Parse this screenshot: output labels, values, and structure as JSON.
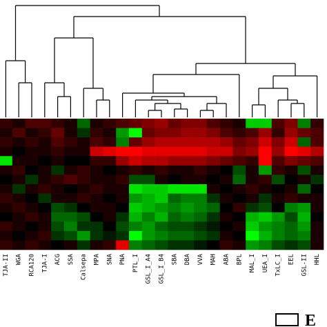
{
  "chart_data": {
    "type": "heatmap",
    "categories": [
      "TJA-II",
      "WGA",
      "RCA120",
      "TJA-I",
      "ACG",
      "SSA",
      "Calsepa",
      "MPA",
      "SNA",
      "PNA",
      "PTL_I",
      "GSL_I_A4",
      "GSL_I_B4",
      "SBA",
      "DBA",
      "VVA",
      "MAH",
      "ABA",
      "BPL",
      "MAL_I",
      "UEA_I",
      "TxLC_I",
      "EEL",
      "GSL-II",
      "HHL"
    ],
    "values": [
      [
        0.2,
        0.1,
        0.3,
        0.3,
        0.2,
        0.1,
        -0.4,
        0.1,
        0.2,
        0.3,
        0.4,
        0.5,
        0.6,
        0.4,
        0.5,
        0.5,
        0.3,
        0.2,
        0.1,
        -0.8,
        -0.8,
        0.3,
        0.5,
        -0.5,
        0.2
      ],
      [
        0.1,
        0.3,
        0.1,
        0.2,
        0.4,
        0.1,
        -0.2,
        0.2,
        0.1,
        -0.6,
        -1.0,
        0.4,
        0.5,
        0.5,
        0.6,
        0.6,
        0.5,
        0.3,
        0.2,
        0.3,
        0.6,
        0.2,
        0.6,
        0.4,
        0.3
      ],
      [
        0.2,
        0.1,
        0.2,
        0.1,
        0.3,
        0.2,
        0.1,
        0.3,
        0.2,
        -0.5,
        0.4,
        0.6,
        0.7,
        0.7,
        0.7,
        0.7,
        0.7,
        0.6,
        0.4,
        0.5,
        0.8,
        0.5,
        0.8,
        -0.4,
        0.3
      ],
      [
        0.1,
        0.0,
        0.1,
        0.1,
        0.2,
        0.1,
        0.1,
        0.8,
        0.9,
        1.0,
        1.0,
        0.9,
        0.9,
        0.9,
        0.9,
        0.9,
        0.8,
        0.8,
        0.5,
        0.6,
        1.0,
        0.6,
        1.0,
        0.9,
        0.7
      ],
      [
        -0.9,
        0.1,
        0.1,
        0.0,
        0.1,
        0.0,
        0.0,
        0.2,
        0.2,
        0.6,
        0.8,
        0.7,
        0.7,
        0.6,
        0.6,
        0.6,
        0.5,
        0.4,
        0.3,
        0.2,
        1.0,
        0.3,
        0.5,
        0.4,
        0.3
      ],
      [
        0.1,
        0.2,
        0.0,
        0.1,
        -0.2,
        0.1,
        0.2,
        0.1,
        0.0,
        0.1,
        0.2,
        0.1,
        0.2,
        0.1,
        0.1,
        0.2,
        0.1,
        0.0,
        -0.3,
        0.1,
        -0.6,
        0.2,
        0.1,
        -0.3,
        0.1
      ],
      [
        0.0,
        0.1,
        -0.2,
        0.1,
        0.2,
        0.3,
        0.2,
        0.1,
        0.1,
        0.2,
        -0.3,
        -0.3,
        0.1,
        0.0,
        0.1,
        0.1,
        0.0,
        0.1,
        -0.4,
        0.1,
        0.2,
        -0.3,
        0.0,
        0.1,
        -0.2
      ],
      [
        0.1,
        -0.2,
        0.1,
        0.2,
        0.1,
        0.0,
        0.1,
        0.2,
        0.1,
        0.1,
        -0.9,
        -0.8,
        -0.8,
        -0.9,
        -0.9,
        -0.9,
        0.1,
        0.0,
        0.1,
        0.2,
        0.1,
        0.0,
        0.1,
        -0.4,
        0.0
      ],
      [
        0.2,
        0.1,
        0.0,
        -0.2,
        0.1,
        0.1,
        0.2,
        0.1,
        0.0,
        0.1,
        -0.6,
        -0.7,
        -0.8,
        -0.4,
        -0.5,
        -0.5,
        -0.2,
        0.1,
        0.0,
        0.1,
        -0.2,
        0.1,
        0.2,
        0.1,
        0.1
      ],
      [
        0.1,
        0.2,
        0.1,
        0.0,
        -0.3,
        -0.2,
        0.0,
        0.1,
        0.1,
        0.0,
        -0.8,
        -0.7,
        -0.6,
        -0.5,
        -0.6,
        -0.5,
        -0.4,
        0.0,
        0.2,
        -0.2,
        -0.3,
        0.0,
        -0.5,
        -0.6,
        0.1
      ],
      [
        0.0,
        0.1,
        0.2,
        0.1,
        -0.4,
        -0.4,
        -0.3,
        0.0,
        0.1,
        -0.2,
        -0.7,
        -0.5,
        -0.7,
        -0.4,
        -0.5,
        -0.4,
        -0.2,
        0.1,
        0.0,
        -0.7,
        -0.8,
        -0.6,
        -0.3,
        -0.7,
        0.0
      ],
      [
        0.2,
        0.1,
        0.0,
        0.1,
        -0.3,
        -0.5,
        -0.2,
        -0.2,
        0.0,
        -0.3,
        -0.5,
        -0.6,
        -0.4,
        -0.3,
        -0.3,
        -0.2,
        -0.1,
        0.0,
        0.1,
        -0.8,
        -0.6,
        -0.5,
        -0.4,
        -0.6,
        0.1
      ],
      [
        0.1,
        0.0,
        0.1,
        0.2,
        -0.2,
        -0.3,
        -0.6,
        -0.2,
        -0.1,
        -0.2,
        -1.0,
        -0.6,
        -0.5,
        -0.4,
        -0.4,
        -0.3,
        -0.2,
        0.1,
        0.0,
        -1.0,
        -0.7,
        -0.5,
        -0.4,
        -0.5,
        0.1
      ],
      [
        0.2,
        0.1,
        0.2,
        0.1,
        0.0,
        0.1,
        -0.2,
        0.1,
        0.2,
        0.9,
        -0.5,
        -0.4,
        -0.3,
        -0.2,
        -0.2,
        -0.1,
        0.0,
        0.2,
        0.1,
        -0.6,
        -0.5,
        -0.3,
        -0.2,
        -0.3,
        0.1
      ]
    ],
    "clim": [
      -1,
      1
    ],
    "color_low": "#00ff00",
    "color_mid": "#000000",
    "color_high": "#ff0000",
    "annotation": "E"
  }
}
